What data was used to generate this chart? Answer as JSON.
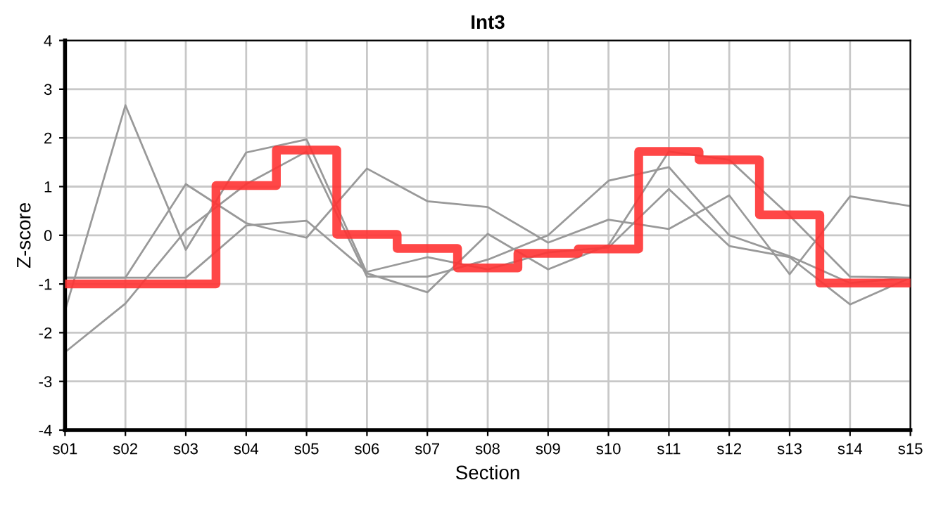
{
  "chart_data": {
    "type": "line",
    "title": "Int3",
    "xlabel": "Section",
    "ylabel": "Z-score",
    "categories": [
      "s01",
      "s02",
      "s03",
      "s04",
      "s05",
      "s06",
      "s07",
      "s08",
      "s09",
      "s10",
      "s11",
      "s12",
      "s13",
      "s14",
      "s15"
    ],
    "series": [
      {
        "color": "#999999",
        "values": [
          -1.55,
          2.67,
          -0.3,
          1.7,
          1.97,
          -0.78,
          -1.17,
          0.03,
          -0.7,
          -0.2,
          1.72,
          1.55,
          0.4,
          -0.85,
          -0.87
        ]
      },
      {
        "color": "#999999",
        "values": [
          -2.4,
          -1.4,
          0.1,
          1.05,
          1.72,
          -0.85,
          -0.85,
          -0.5,
          0.0,
          1.12,
          1.4,
          0.0,
          -0.43,
          -0.98,
          -0.87
        ]
      },
      {
        "color": "#999999",
        "values": [
          -0.87,
          -0.87,
          1.05,
          0.25,
          -0.05,
          1.37,
          0.7,
          0.58,
          -0.15,
          0.32,
          0.13,
          0.82,
          -0.8,
          0.8,
          0.6
        ]
      },
      {
        "color": "#999999",
        "values": [
          -0.87,
          -0.87,
          -0.87,
          0.2,
          0.3,
          -0.75,
          -0.45,
          -0.7,
          -0.35,
          -0.25,
          0.95,
          -0.22,
          -0.45,
          -1.42,
          -0.87
        ]
      },
      {
        "type": "step",
        "color": "#ff3333",
        "values": [
          -1,
          -1,
          -1,
          1.02,
          1.75,
          0.02,
          -0.27,
          -0.67,
          -0.37,
          -0.28,
          1.72,
          1.55,
          0.42,
          -0.98,
          -0.98
        ]
      }
    ],
    "ylim": [
      -4,
      4
    ],
    "yticks": [
      -4,
      -3,
      -2,
      -1,
      0,
      1,
      2,
      3,
      4
    ],
    "grid": true,
    "line_style": "solid"
  }
}
